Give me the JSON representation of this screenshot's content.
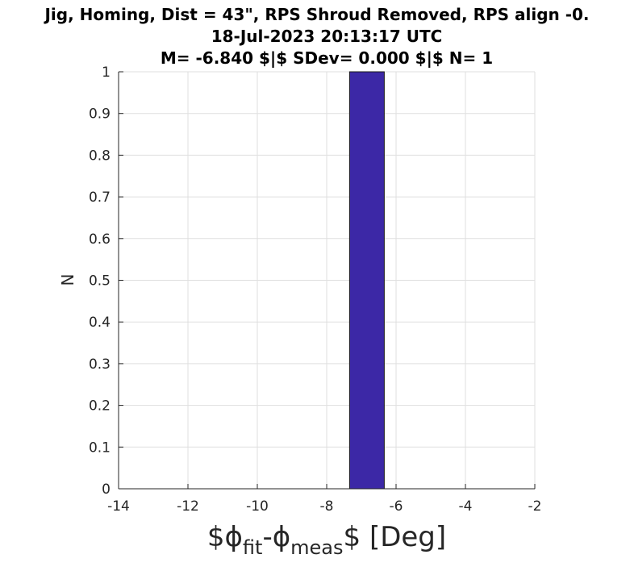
{
  "chart_data": {
    "type": "bar",
    "title_lines": [
      "Jig, Homing, Dist = 43\", RPS Shroud Removed, RPS align -0.",
      "18-Jul-2023 20:13:17 UTC",
      "M= -6.840 $|$ SDev= 0.000 $|$ N= 1"
    ],
    "ylabel": "N",
    "xlabel": {
      "prefix": "$ϕ",
      "sub1": "fit",
      "mid": "-ϕ",
      "sub2": "meas",
      "suffix": "$ [Deg]"
    },
    "xlim": [
      -14,
      -2
    ],
    "ylim": [
      0,
      1
    ],
    "xticks": [
      -14,
      -12,
      -10,
      -8,
      -6,
      -4,
      -2
    ],
    "yticks": [
      0,
      0.1,
      0.2,
      0.3,
      0.4,
      0.5,
      0.6,
      0.7,
      0.8,
      0.9,
      1
    ],
    "grid": true,
    "bins": [
      {
        "x0": -7.34,
        "x1": -6.34,
        "value": 1
      }
    ],
    "colors": {
      "bar": "#3c28a6",
      "bar_edge": "#1a1a1a",
      "grid": "#dfdfdf",
      "axis": "#262626"
    }
  }
}
